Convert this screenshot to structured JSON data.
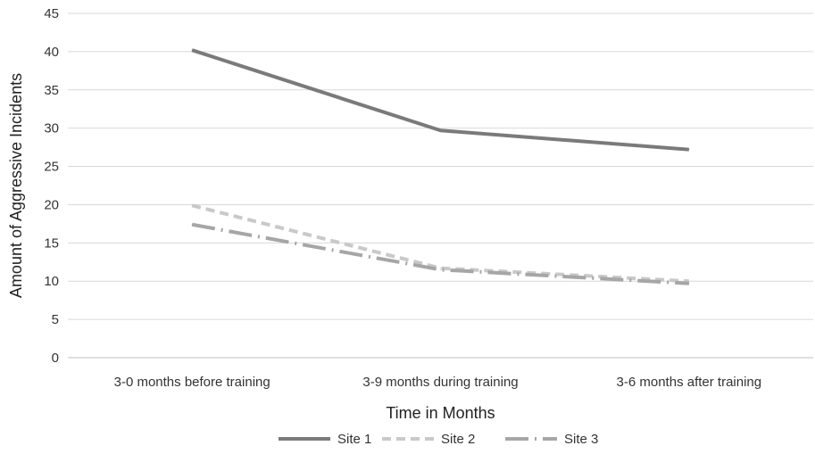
{
  "chart_data": {
    "type": "line",
    "title": "",
    "xlabel": "Time in Months",
    "ylabel": "Amount of Aggressive Incidents",
    "categories": [
      "3-0 months before training",
      "3-9 months during training",
      "3-6 months after training"
    ],
    "ylim": [
      0,
      45
    ],
    "yticks": [
      0,
      5,
      10,
      15,
      20,
      25,
      30,
      35,
      40,
      45
    ],
    "grid": true,
    "legend_position": "bottom",
    "series": [
      {
        "name": "Site 1",
        "values": [
          40.2,
          29.7,
          27.2
        ],
        "color": "#7a7a7a",
        "style": "solid"
      },
      {
        "name": "Site 2",
        "values": [
          19.9,
          11.7,
          10.0
        ],
        "color": "#c9c9c9",
        "style": "dashed"
      },
      {
        "name": "Site 3",
        "values": [
          17.4,
          11.5,
          9.7
        ],
        "color": "#a6a6a6",
        "style": "dash-dot"
      }
    ]
  }
}
